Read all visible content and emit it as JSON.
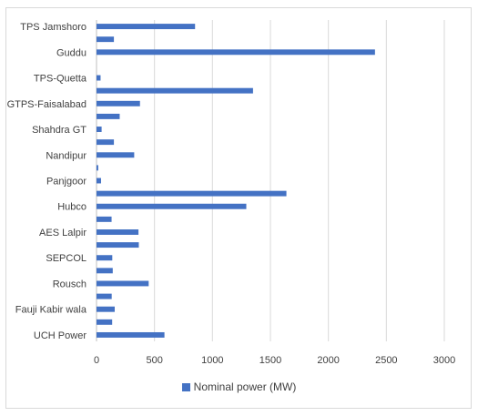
{
  "chart_data": {
    "type": "bar",
    "orientation": "horizontal",
    "categories_visible_labels": [
      "TPS Jamshoro",
      "Guddu",
      "TPS-Quetta",
      "GTPS-Faisalabad",
      "Shahdra GT",
      "Nandipur",
      "Panjgoor",
      "Hubco",
      "AES Lalpir",
      "SEPCOL",
      "Rousch",
      "Fauji Kabir wala",
      "UCH Power"
    ],
    "rows": [
      {
        "label": "TPS Jamshoro",
        "value": 850
      },
      {
        "label": "",
        "value": 150
      },
      {
        "label": "Guddu",
        "value": 2402
      },
      {
        "label": "",
        "value": 0
      },
      {
        "label": "TPS-Quetta",
        "value": 35
      },
      {
        "label": "",
        "value": 1350
      },
      {
        "label": "GTPS-Faisalabad",
        "value": 375
      },
      {
        "label": "",
        "value": 200
      },
      {
        "label": "Shahdra GT",
        "value": 44
      },
      {
        "label": "",
        "value": 150
      },
      {
        "label": "Nandipur",
        "value": 325
      },
      {
        "label": "",
        "value": 15
      },
      {
        "label": "Panjgoor",
        "value": 39
      },
      {
        "label": "",
        "value": 1638
      },
      {
        "label": "Hubco",
        "value": 1292
      },
      {
        "label": "",
        "value": 130
      },
      {
        "label": "AES Lalpir",
        "value": 362
      },
      {
        "label": "",
        "value": 365
      },
      {
        "label": "SEPCOL",
        "value": 136
      },
      {
        "label": "",
        "value": 140
      },
      {
        "label": "Rousch",
        "value": 450
      },
      {
        "label": "",
        "value": 131
      },
      {
        "label": "Fauji Kabir wala",
        "value": 157
      },
      {
        "label": "",
        "value": 135
      },
      {
        "label": "UCH Power",
        "value": 586
      }
    ],
    "xlim": [
      0,
      3000
    ],
    "xticks": [
      "0",
      "500",
      "1000",
      "1500",
      "2000",
      "2500",
      "3000"
    ],
    "grid": "vertical",
    "series_color": "#4472c4",
    "legend": {
      "position": "bottom",
      "label": "Nominal power (MW)"
    }
  }
}
